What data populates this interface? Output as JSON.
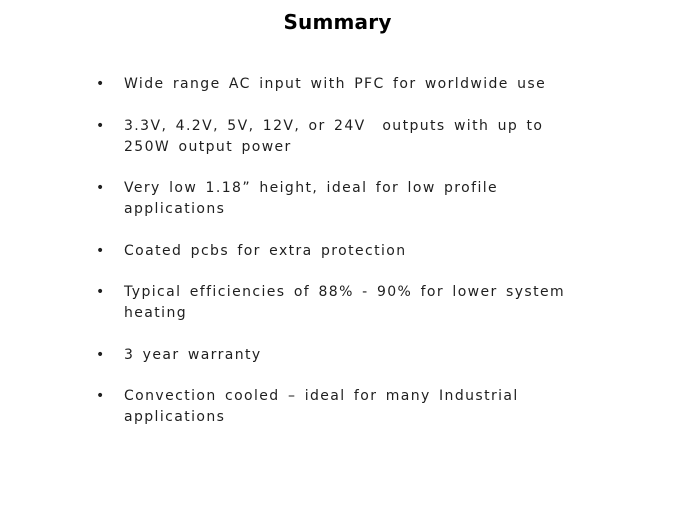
{
  "page": {
    "title": "Summary",
    "background_color": "#ffffff",
    "title_color": "#000000",
    "text_color": "#1f1f1f"
  },
  "bullet_char": "•",
  "bullets": [
    {
      "text": "Wide range AC input with PFC for worldwide use"
    },
    {
      "text": "3.3V, 4.2V, 5V, 12V, or 24V  outputs with up to\n250W output power"
    },
    {
      "text": "Very low 1.18” height, ideal for low profile\napplications"
    },
    {
      "text": "Coated pcbs for extra protection"
    },
    {
      "text": "Typical efficiencies of 88% - 90% for lower system\nheating"
    },
    {
      "text": "3 year warranty"
    },
    {
      "text": "Convection cooled – ideal for many Industrial\napplications"
    }
  ]
}
